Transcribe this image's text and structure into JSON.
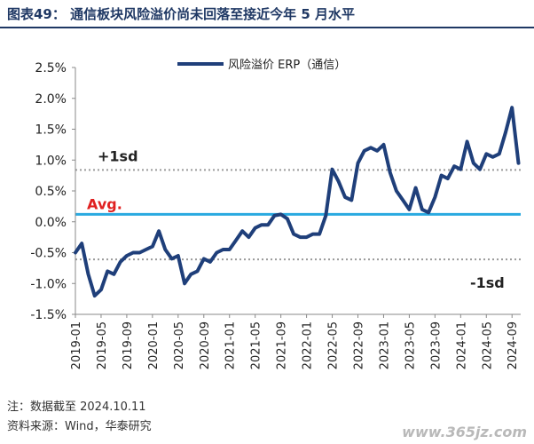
{
  "title": "图表49：  通信板块风险溢价尚未回落至接近今年 5 月水平",
  "note_source": "注：数据截至 2024.10.11",
  "note_data": "资料来源：Wind，华泰研究",
  "watermark": "www.365jz.com",
  "colors": {
    "title": "#1f3864",
    "series": "#1f3f7a",
    "avg": "#29a9e0",
    "sd": "#9a9a9a",
    "avg_label": "#e02020"
  },
  "chart_data": {
    "type": "line",
    "title": "",
    "xlabel": "",
    "ylabel": "",
    "ylim": [
      -1.5,
      2.5
    ],
    "y_ticks": [
      "-1.5%",
      "-1.0%",
      "-0.5%",
      "0.0%",
      "0.5%",
      "1.0%",
      "1.5%",
      "2.0%",
      "2.5%"
    ],
    "y_tick_values": [
      -1.5,
      -1.0,
      -0.5,
      0.0,
      0.5,
      1.0,
      1.5,
      2.0,
      2.5
    ],
    "x_ticks": [
      "2019-01",
      "2019-05",
      "2019-09",
      "2020-01",
      "2020-05",
      "2020-09",
      "2021-01",
      "2021-05",
      "2021-09",
      "2022-01",
      "2022-05",
      "2022-09",
      "2023-01",
      "2023-05",
      "2023-09",
      "2024-01",
      "2024-05",
      "2024-09"
    ],
    "legend": "风险溢价 ERP（通信）",
    "reference_lines": [
      {
        "label": "+1sd",
        "value": 0.84,
        "style": "dotted"
      },
      {
        "label": "Avg.",
        "value": 0.12,
        "style": "solid"
      },
      {
        "label": "-1sd",
        "value": -0.61,
        "style": "dotted"
      }
    ],
    "series": [
      {
        "name": "风险溢价 ERP（通信）",
        "x": [
          "2019-01",
          "2019-02",
          "2019-03",
          "2019-04",
          "2019-05",
          "2019-06",
          "2019-07",
          "2019-08",
          "2019-09",
          "2019-10",
          "2019-11",
          "2019-12",
          "2020-01",
          "2020-02",
          "2020-03",
          "2020-04",
          "2020-05",
          "2020-06",
          "2020-07",
          "2020-08",
          "2020-09",
          "2020-10",
          "2020-11",
          "2020-12",
          "2021-01",
          "2021-02",
          "2021-03",
          "2021-04",
          "2021-05",
          "2021-06",
          "2021-07",
          "2021-08",
          "2021-09",
          "2021-10",
          "2021-11",
          "2021-12",
          "2022-01",
          "2022-02",
          "2022-03",
          "2022-04",
          "2022-05",
          "2022-06",
          "2022-07",
          "2022-08",
          "2022-09",
          "2022-10",
          "2022-11",
          "2022-12",
          "2023-01",
          "2023-02",
          "2023-03",
          "2023-04",
          "2023-05",
          "2023-06",
          "2023-07",
          "2023-08",
          "2023-09",
          "2023-10",
          "2023-11",
          "2023-12",
          "2024-01",
          "2024-02",
          "2024-03",
          "2024-04",
          "2024-05",
          "2024-06",
          "2024-07",
          "2024-08",
          "2024-09",
          "2024-10"
        ],
        "values": [
          -0.5,
          -0.35,
          -0.85,
          -1.2,
          -1.1,
          -0.8,
          -0.85,
          -0.65,
          -0.55,
          -0.5,
          -0.5,
          -0.45,
          -0.4,
          -0.15,
          -0.45,
          -0.6,
          -0.55,
          -1.0,
          -0.85,
          -0.8,
          -0.6,
          -0.65,
          -0.5,
          -0.45,
          -0.45,
          -0.3,
          -0.15,
          -0.25,
          -0.1,
          -0.05,
          -0.05,
          0.1,
          0.12,
          0.05,
          -0.2,
          -0.25,
          -0.25,
          -0.2,
          -0.2,
          0.1,
          0.85,
          0.65,
          0.4,
          0.35,
          0.95,
          1.15,
          1.2,
          1.15,
          1.25,
          0.8,
          0.5,
          0.35,
          0.2,
          0.55,
          0.2,
          0.15,
          0.4,
          0.75,
          0.7,
          0.9,
          0.85,
          1.3,
          0.95,
          0.85,
          1.1,
          1.05,
          1.1,
          1.45,
          1.85,
          0.95
        ]
      }
    ]
  }
}
